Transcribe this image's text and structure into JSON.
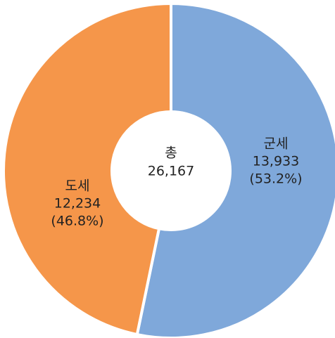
{
  "chart_data": {
    "type": "pie",
    "categories": [
      "군세",
      "도세"
    ],
    "values": [
      13933,
      12234
    ],
    "value_labels": [
      "13,933",
      "12,234"
    ],
    "percentages": [
      53.2,
      46.8
    ],
    "percentage_labels": [
      "(53.2%)",
      "(46.8%)"
    ],
    "colors": [
      "#7fa8da",
      "#f5964a"
    ],
    "center_label": "총",
    "total": 26167,
    "total_label": "26,167"
  }
}
